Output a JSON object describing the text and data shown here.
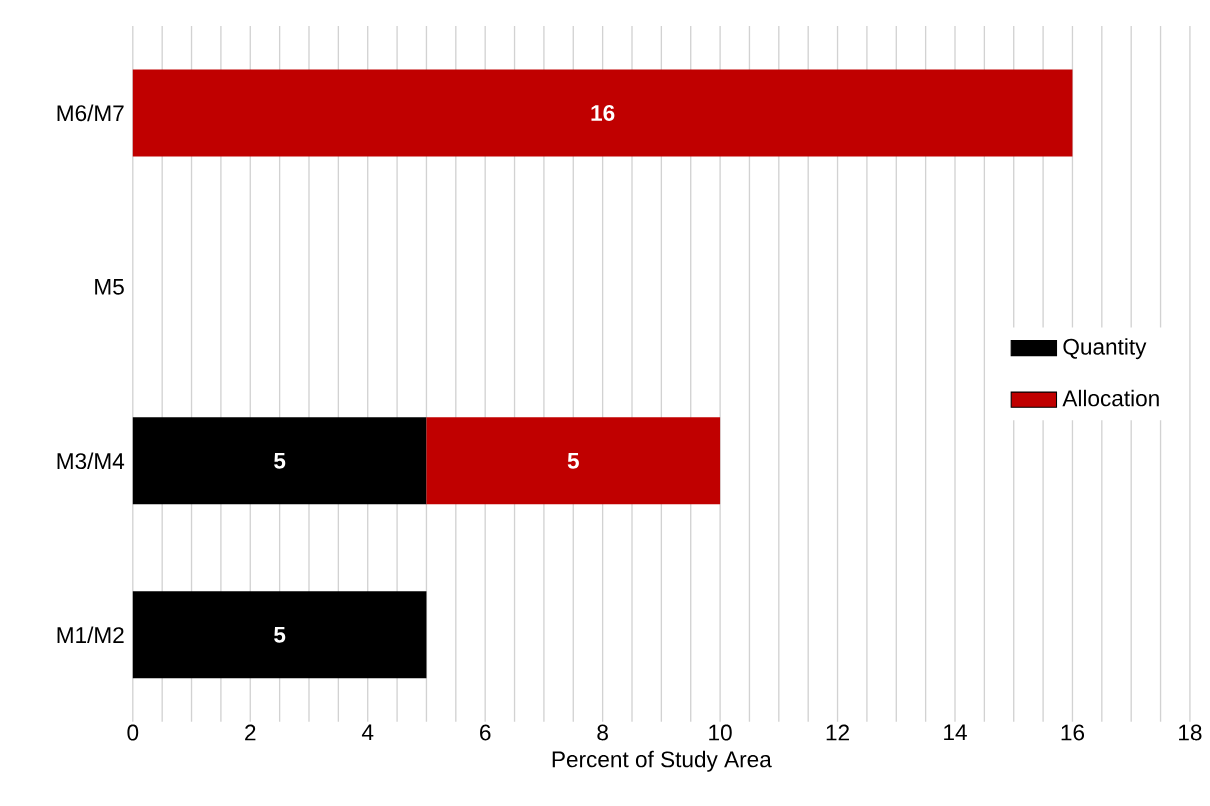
{
  "chart_data": {
    "type": "bar",
    "orientation": "horizontal",
    "stacked": true,
    "categories": [
      "M6/M7",
      "M5",
      "M3/M4",
      "M1/M2"
    ],
    "series": [
      {
        "name": "Quantity",
        "color": "#000000",
        "values": [
          null,
          null,
          5,
          5
        ]
      },
      {
        "name": "Allocation",
        "color": "#c00000",
        "values": [
          16,
          null,
          5,
          null
        ]
      }
    ],
    "xlabel": "Percent of Study Area",
    "xlim": [
      0,
      18
    ],
    "xticks": [
      0,
      {
        "value": 0.5,
        "label": null
      },
      {
        "value": 1,
        "label": null
      },
      {
        "value": 1.5,
        "label": null
      },
      2,
      {
        "value": 2.5,
        "label": null
      },
      {
        "value": 3,
        "label": null
      },
      {
        "value": 3.5,
        "label": null
      },
      4,
      {
        "value": 4.5,
        "label": null
      },
      {
        "value": 5,
        "label": null
      },
      {
        "value": 5.5,
        "label": null
      },
      6,
      {
        "value": 6.5,
        "label": null
      },
      {
        "value": 7,
        "label": null
      },
      {
        "value": 7.5,
        "label": null
      },
      8,
      {
        "value": 8.5,
        "label": null
      },
      {
        "value": 9,
        "label": null
      },
      {
        "value": 9.5,
        "label": null
      },
      10,
      {
        "value": 10.5,
        "label": null
      },
      {
        "value": 11,
        "label": null
      },
      {
        "value": 11.5,
        "label": null
      },
      12,
      {
        "value": 12.5,
        "label": null
      },
      {
        "value": 13,
        "label": null
      },
      {
        "value": 13.5,
        "label": null
      },
      14,
      {
        "value": 14.5,
        "label": null
      },
      {
        "value": 15,
        "label": null
      },
      {
        "value": 15.5,
        "label": null
      },
      16,
      {
        "value": 16.5,
        "label": null
      },
      {
        "value": 17,
        "label": null
      },
      {
        "value": 17.5,
        "label": null
      },
      18
    ],
    "grid": "x",
    "legend": "right",
    "data_labels": true
  }
}
